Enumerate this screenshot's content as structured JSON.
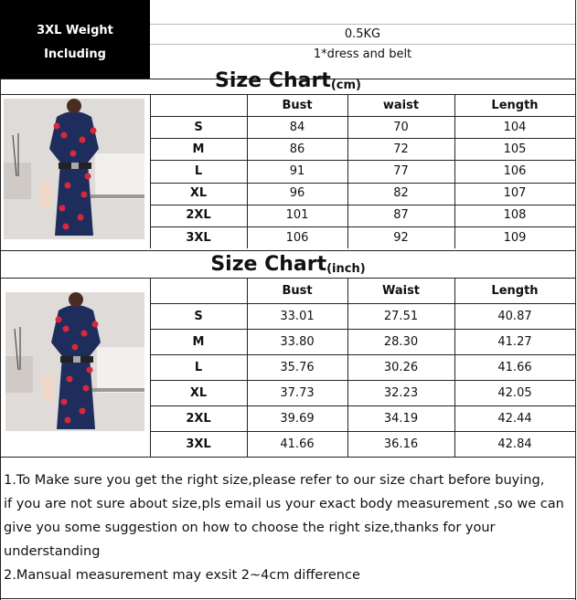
{
  "header": {
    "left_lines": [
      "3XL Weight",
      "Including"
    ],
    "weight": "0.5KG",
    "including": "1*dress and belt"
  },
  "cm": {
    "title": "Size Chart",
    "unit": "(cm)",
    "columns": [
      "Bust",
      "waist",
      "Length"
    ],
    "rows": [
      [
        "S",
        "84",
        "70",
        "104"
      ],
      [
        "M",
        "86",
        "72",
        "105"
      ],
      [
        "L",
        "91",
        "77",
        "106"
      ],
      [
        "XL",
        "96",
        "82",
        "107"
      ],
      [
        "2XL",
        "101",
        "87",
        "108"
      ],
      [
        "3XL",
        "106",
        "92",
        "109"
      ]
    ]
  },
  "inch": {
    "title": "Size Chart",
    "unit": "(inch)",
    "columns": [
      "Bust",
      "Waist",
      "Length"
    ],
    "rows": [
      [
        "S",
        "33.01",
        "27.51",
        "40.87"
      ],
      [
        "M",
        "33.80",
        "28.30",
        "41.27"
      ],
      [
        "L",
        "35.76",
        "30.26",
        "41.66"
      ],
      [
        "XL",
        "37.73",
        "32.23",
        "42.05"
      ],
      [
        "2XL",
        "39.69",
        "34.19",
        "42.44"
      ],
      [
        "3XL",
        "41.66",
        "36.16",
        "42.84"
      ]
    ]
  },
  "notes": [
    "1.To Make sure you get the right size,please refer to our size chart before buying,",
    "if you are not sure about size,pls email us your exact body measurement ,so we can",
    "give you some suggestion on how to choose the right size,thanks for your",
    "understanding",
    "2.Mansual measurement may exsit 2~4cm difference"
  ],
  "colors": {
    "dress": "#1f2d5c",
    "dots": "#d8283a"
  }
}
